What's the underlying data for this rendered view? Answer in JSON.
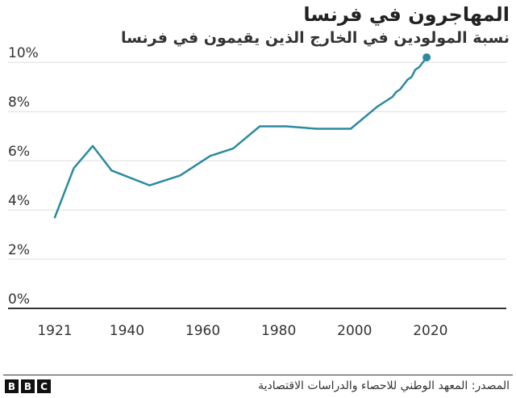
{
  "chart_data": {
    "type": "line",
    "title": "المهاجرون في فرنسا",
    "subtitle": "نسبة المولودين في الخارج الذين يقيمون في فرنسا",
    "x": [
      1921,
      1926,
      1931,
      1936,
      1946,
      1954,
      1962,
      1968,
      1975,
      1982,
      1990,
      1999,
      2006,
      2008,
      2010,
      2011,
      2012,
      2013,
      2014,
      2015,
      2016,
      2017,
      2018,
      2019
    ],
    "series": [
      {
        "values": [
          3.7,
          5.7,
          6.6,
          5.6,
          5.0,
          5.4,
          6.2,
          6.5,
          7.4,
          7.4,
          7.3,
          7.3,
          8.2,
          8.4,
          8.6,
          8.8,
          8.9,
          9.1,
          9.3,
          9.4,
          9.7,
          9.8,
          10.0,
          10.2
        ],
        "color": "#2b8aa0"
      }
    ],
    "xticks": [
      "1921",
      "1940",
      "1960",
      "1980",
      "2000",
      "2020"
    ],
    "xtick_values": [
      1921,
      1940,
      1960,
      1980,
      2000,
      2020
    ],
    "yticks": [
      "0%",
      "2%",
      "4%",
      "6%",
      "8%",
      "10%"
    ],
    "ytick_values": [
      0,
      2,
      4,
      6,
      8,
      10
    ],
    "xlim": [
      1921,
      2040
    ],
    "ylim": [
      0,
      10.5
    ],
    "grid": "horizontal",
    "end_marker": true
  },
  "footer": {
    "source": "المصدر: المعهد الوطني للاحصاء والدراسات الاقتصادية",
    "logo_letters": [
      "B",
      "B",
      "C"
    ]
  },
  "colors": {
    "line": "#2b8aa0",
    "grid": "#dddddd",
    "axis": "#333333",
    "text": "#222222"
  }
}
